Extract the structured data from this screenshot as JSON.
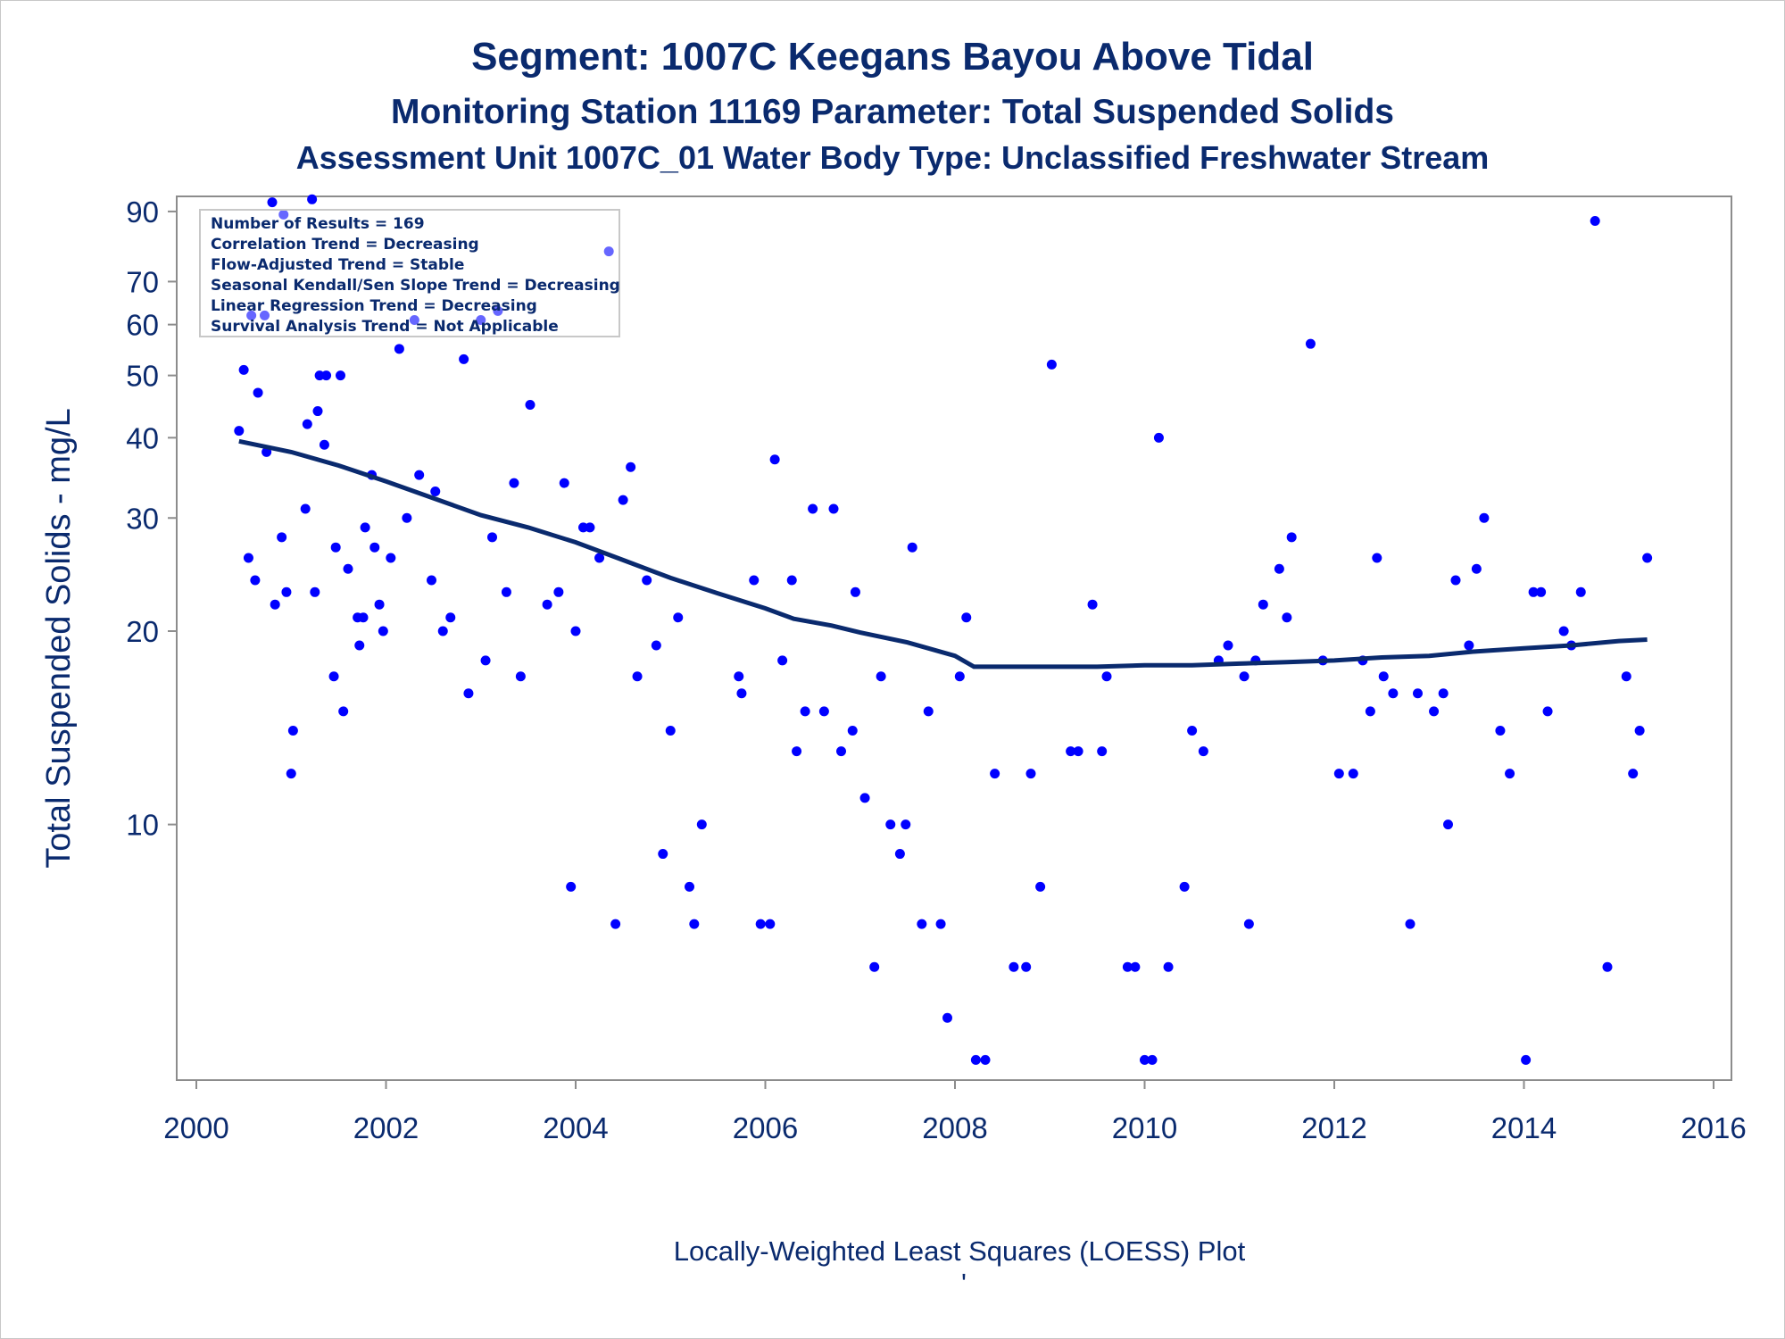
{
  "chart_data": {
    "type": "scatter",
    "title": "Segment: 1007C  Keegans Bayou Above Tidal",
    "subtitle": "Monitoring Station 11169 Parameter: Total Suspended Solids",
    "subtitle2": "Assessment Unit 1007C_01   Water Body Type: Unclassified Freshwater Stream",
    "ylabel": "Total Suspended Solids - mg/L",
    "xlabel": "Locally-Weighted Least Squares (LOESS) Plot",
    "footnote": "'",
    "y_scale": "log",
    "xlim": [
      2000,
      2016
    ],
    "ylim": [
      4,
      95
    ],
    "x_ticks": [
      2000,
      2002,
      2004,
      2006,
      2008,
      2010,
      2012,
      2014,
      2016
    ],
    "y_ticks": [
      10,
      20,
      30,
      40,
      50,
      60,
      70,
      90
    ],
    "stats_box": [
      "Number of Results = 169",
      "Correlation Trend = Decreasing",
      "Flow-Adjusted Trend = Stable",
      "Seasonal Kendall/Sen Slope Trend = Decreasing",
      "Linear Regression Trend = Decreasing",
      "Survival Analysis Trend = Not Applicable"
    ],
    "point_color": "#0000ff",
    "loess_color": "#0a2a6e",
    "points": [
      [
        2000.45,
        41
      ],
      [
        2000.5,
        51
      ],
      [
        2000.55,
        26
      ],
      [
        2000.58,
        62
      ],
      [
        2000.62,
        24
      ],
      [
        2000.65,
        47
      ],
      [
        2000.72,
        62
      ],
      [
        2000.74,
        38
      ],
      [
        2000.8,
        93
      ],
      [
        2000.83,
        22
      ],
      [
        2000.9,
        28
      ],
      [
        2000.92,
        89
      ],
      [
        2000.95,
        23
      ],
      [
        2001.0,
        12
      ],
      [
        2001.02,
        14
      ],
      [
        2001.15,
        31
      ],
      [
        2001.17,
        42
      ],
      [
        2001.22,
        94
      ],
      [
        2001.25,
        23
      ],
      [
        2001.28,
        44
      ],
      [
        2001.3,
        50
      ],
      [
        2001.35,
        39
      ],
      [
        2001.37,
        50
      ],
      [
        2001.45,
        17
      ],
      [
        2001.47,
        27
      ],
      [
        2001.52,
        50
      ],
      [
        2001.55,
        15
      ],
      [
        2001.6,
        25
      ],
      [
        2001.7,
        21
      ],
      [
        2001.72,
        19
      ],
      [
        2001.76,
        21
      ],
      [
        2001.78,
        29
      ],
      [
        2001.85,
        35
      ],
      [
        2001.88,
        27
      ],
      [
        2001.93,
        22
      ],
      [
        2001.97,
        20
      ],
      [
        2002.05,
        26
      ],
      [
        2002.14,
        55
      ],
      [
        2002.22,
        30
      ],
      [
        2002.3,
        61
      ],
      [
        2002.35,
        35
      ],
      [
        2002.48,
        24
      ],
      [
        2002.52,
        33
      ],
      [
        2002.6,
        20
      ],
      [
        2002.68,
        21
      ],
      [
        2002.82,
        53
      ],
      [
        2002.87,
        16
      ],
      [
        2003.0,
        61
      ],
      [
        2003.05,
        18
      ],
      [
        2003.12,
        28
      ],
      [
        2003.18,
        63
      ],
      [
        2003.27,
        23
      ],
      [
        2003.35,
        34
      ],
      [
        2003.42,
        17
      ],
      [
        2003.52,
        45
      ],
      [
        2003.7,
        22
      ],
      [
        2003.82,
        23
      ],
      [
        2003.88,
        34
      ],
      [
        2003.95,
        8
      ],
      [
        2004.0,
        20
      ],
      [
        2004.08,
        29
      ],
      [
        2004.15,
        29
      ],
      [
        2004.25,
        26
      ],
      [
        2004.35,
        78
      ],
      [
        2004.42,
        7
      ],
      [
        2004.5,
        32
      ],
      [
        2004.58,
        36
      ],
      [
        2004.65,
        17
      ],
      [
        2004.75,
        24
      ],
      [
        2004.85,
        19
      ],
      [
        2004.92,
        9
      ],
      [
        2005.0,
        14
      ],
      [
        2005.08,
        21
      ],
      [
        2005.2,
        8
      ],
      [
        2005.25,
        7
      ],
      [
        2005.33,
        10
      ],
      [
        2005.72,
        17
      ],
      [
        2005.75,
        16
      ],
      [
        2005.88,
        24
      ],
      [
        2005.95,
        7
      ],
      [
        2006.05,
        7
      ],
      [
        2006.1,
        37
      ],
      [
        2006.18,
        18
      ],
      [
        2006.28,
        24
      ],
      [
        2006.33,
        13
      ],
      [
        2006.42,
        15
      ],
      [
        2006.5,
        31
      ],
      [
        2006.62,
        15
      ],
      [
        2006.72,
        31
      ],
      [
        2006.8,
        13
      ],
      [
        2006.92,
        14
      ],
      [
        2006.95,
        23
      ],
      [
        2007.05,
        11
      ],
      [
        2007.15,
        6
      ],
      [
        2007.22,
        17
      ],
      [
        2007.32,
        10
      ],
      [
        2007.42,
        9
      ],
      [
        2007.48,
        10
      ],
      [
        2007.55,
        27
      ],
      [
        2007.65,
        7
      ],
      [
        2007.72,
        15
      ],
      [
        2007.85,
        7
      ],
      [
        2007.92,
        5
      ],
      [
        2008.05,
        17
      ],
      [
        2008.12,
        21
      ],
      [
        2008.22,
        4.3
      ],
      [
        2008.32,
        4.3
      ],
      [
        2008.42,
        12
      ],
      [
        2008.62,
        6
      ],
      [
        2008.75,
        6
      ],
      [
        2008.8,
        12
      ],
      [
        2008.9,
        8
      ],
      [
        2009.02,
        52
      ],
      [
        2009.22,
        13
      ],
      [
        2009.3,
        13
      ],
      [
        2009.45,
        22
      ],
      [
        2009.55,
        13
      ],
      [
        2009.6,
        17
      ],
      [
        2009.82,
        6
      ],
      [
        2009.9,
        6
      ],
      [
        2010.0,
        4.3
      ],
      [
        2010.08,
        4.3
      ],
      [
        2010.15,
        40
      ],
      [
        2010.25,
        6
      ],
      [
        2010.42,
        8
      ],
      [
        2010.5,
        14
      ],
      [
        2010.62,
        13
      ],
      [
        2010.78,
        18
      ],
      [
        2010.88,
        19
      ],
      [
        2011.05,
        17
      ],
      [
        2011.1,
        7
      ],
      [
        2011.17,
        18
      ],
      [
        2011.25,
        22
      ],
      [
        2011.42,
        25
      ],
      [
        2011.5,
        21
      ],
      [
        2011.55,
        28
      ],
      [
        2011.75,
        56
      ],
      [
        2011.88,
        18
      ],
      [
        2012.05,
        12
      ],
      [
        2012.2,
        12
      ],
      [
        2012.3,
        18
      ],
      [
        2012.38,
        15
      ],
      [
        2012.45,
        26
      ],
      [
        2012.52,
        17
      ],
      [
        2012.62,
        16
      ],
      [
        2012.8,
        7
      ],
      [
        2012.88,
        16
      ],
      [
        2013.05,
        15
      ],
      [
        2013.15,
        16
      ],
      [
        2013.2,
        10
      ],
      [
        2013.28,
        24
      ],
      [
        2013.42,
        19
      ],
      [
        2013.5,
        25
      ],
      [
        2013.58,
        30
      ],
      [
        2013.75,
        14
      ],
      [
        2013.85,
        12
      ],
      [
        2014.02,
        4.3
      ],
      [
        2014.1,
        23
      ],
      [
        2014.18,
        23
      ],
      [
        2014.25,
        15
      ],
      [
        2014.42,
        20
      ],
      [
        2014.5,
        19
      ],
      [
        2014.6,
        23
      ],
      [
        2014.75,
        87
      ],
      [
        2014.88,
        6
      ],
      [
        2015.08,
        17
      ],
      [
        2015.15,
        12
      ],
      [
        2015.22,
        14
      ],
      [
        2015.3,
        26
      ]
    ],
    "loess": [
      [
        2000.45,
        39.5
      ],
      [
        2001.0,
        38
      ],
      [
        2001.5,
        36.2
      ],
      [
        2002.0,
        34.2
      ],
      [
        2002.5,
        32.2
      ],
      [
        2003.0,
        30.3
      ],
      [
        2003.5,
        29
      ],
      [
        2004.0,
        27.5
      ],
      [
        2004.5,
        25.8
      ],
      [
        2005.0,
        24.2
      ],
      [
        2005.5,
        22.9
      ],
      [
        2006.0,
        21.7
      ],
      [
        2006.3,
        20.9
      ],
      [
        2006.7,
        20.4
      ],
      [
        2007.0,
        19.9
      ],
      [
        2007.5,
        19.2
      ],
      [
        2008.0,
        18.3
      ],
      [
        2008.2,
        17.6
      ],
      [
        2008.6,
        17.6
      ],
      [
        2009.0,
        17.6
      ],
      [
        2009.5,
        17.6
      ],
      [
        2010.0,
        17.7
      ],
      [
        2010.5,
        17.7
      ],
      [
        2011.0,
        17.8
      ],
      [
        2011.5,
        17.9
      ],
      [
        2012.0,
        18.0
      ],
      [
        2012.5,
        18.2
      ],
      [
        2013.0,
        18.3
      ],
      [
        2013.5,
        18.6
      ],
      [
        2014.0,
        18.8
      ],
      [
        2014.5,
        19.0
      ],
      [
        2015.0,
        19.3
      ],
      [
        2015.3,
        19.4
      ]
    ]
  }
}
